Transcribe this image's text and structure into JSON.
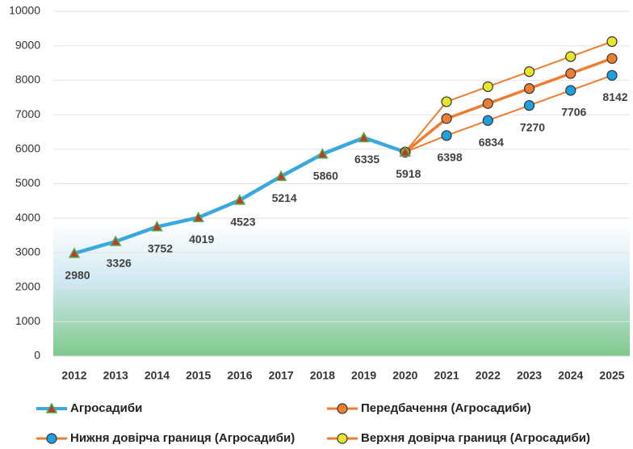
{
  "chart_data": {
    "type": "line",
    "categories": [
      "2012",
      "2013",
      "2014",
      "2015",
      "2016",
      "2017",
      "2018",
      "2019",
      "2020",
      "2021",
      "2022",
      "2023",
      "2024",
      "2025"
    ],
    "ylim": [
      0,
      10000
    ],
    "yticks": [
      0,
      1000,
      2000,
      3000,
      4000,
      5000,
      6000,
      7000,
      8000,
      9000,
      10000
    ],
    "grid": true,
    "series": [
      {
        "name": "Агросадиби",
        "color": "#3aa8dc",
        "marker": "triangle",
        "marker_color": "#c0392b",
        "data_labels": true,
        "values": [
          2980,
          3326,
          3752,
          4019,
          4523,
          5214,
          5860,
          6335,
          5918,
          null,
          null,
          null,
          null,
          null
        ]
      },
      {
        "name": "Передбачення (Агросадиби)",
        "color": "#ed7d31",
        "marker": "circle",
        "marker_color": "#ed7d31",
        "data_labels": false,
        "values": [
          null,
          null,
          null,
          null,
          null,
          null,
          null,
          null,
          5918,
          6888,
          7324,
          7760,
          8196,
          8632
        ]
      },
      {
        "name": "Нижня довірча границя (Агросадиби)",
        "color": "#ed7d31",
        "marker": "circle",
        "marker_color": "#1ba1e2",
        "data_labels": true,
        "values": [
          null,
          null,
          null,
          null,
          null,
          null,
          null,
          null,
          5918,
          6398,
          6834,
          7270,
          7706,
          8142
        ]
      },
      {
        "name": "Верхня довірча границя (Агросадиби)",
        "color": "#ed7d31",
        "marker": "circle",
        "marker_color": "#e8e62c",
        "data_labels": false,
        "values": [
          null,
          null,
          null,
          null,
          null,
          null,
          null,
          null,
          5918,
          7378,
          7814,
          8250,
          8686,
          9122
        ]
      }
    ]
  }
}
